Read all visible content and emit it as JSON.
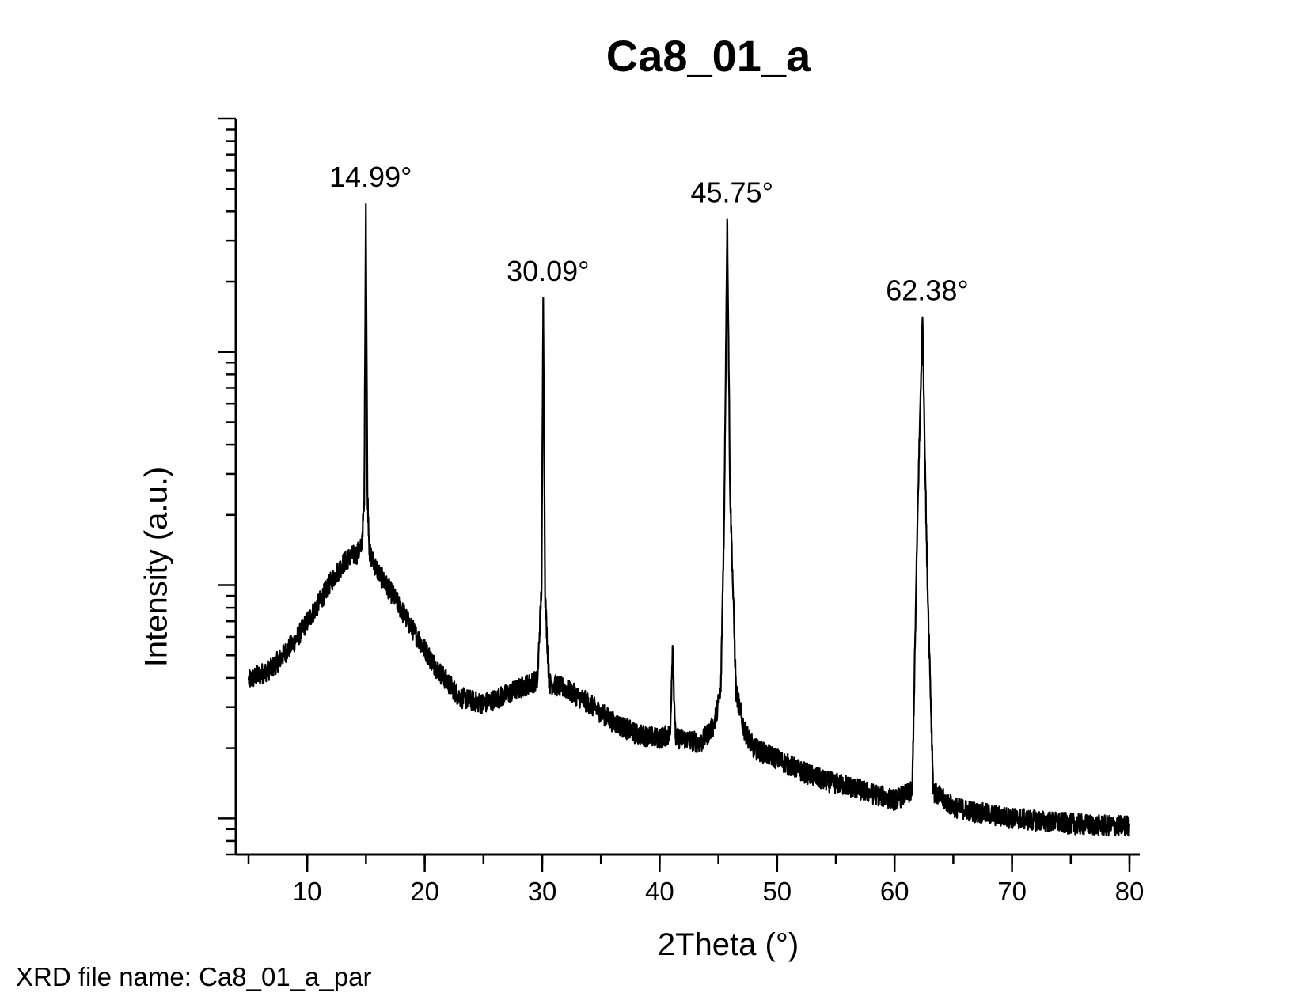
{
  "chart_data": {
    "type": "line",
    "title": "Ca8_01_a",
    "xlabel": "2Theta (°)",
    "ylabel": "Intensity (a.u.)",
    "xlim": [
      5,
      80
    ],
    "yscale": "log",
    "ylim": [
      0.7,
      1000
    ],
    "xticks": [
      10,
      20,
      30,
      40,
      50,
      60,
      70,
      80
    ],
    "xtick_labels": [
      "10",
      "20",
      "30",
      "40",
      "50",
      "60",
      "70",
      "80"
    ],
    "xminor_step": 5,
    "yticks_major": [
      1,
      10,
      100,
      1000
    ],
    "ytick_labels_shown": false,
    "grid": false,
    "line_color": "#000000",
    "series": [
      {
        "x": [
          5,
          7,
          9,
          11,
          12,
          13,
          13.6,
          14.2,
          14.6,
          14.85,
          14.99,
          15.12,
          15.3,
          15.6,
          16.2,
          17.5,
          19,
          21,
          23,
          25,
          27,
          28.5,
          29.6,
          29.95,
          30.09,
          30.25,
          30.6,
          32,
          34,
          36,
          38,
          40,
          40.9,
          41.1,
          41.35,
          42,
          43.5,
          44.6,
          45.2,
          45.5,
          45.75,
          46.0,
          46.5,
          47.2,
          48,
          50,
          52,
          54,
          56,
          58,
          60,
          61.5,
          62.0,
          62.38,
          62.75,
          63.3,
          65,
          67,
          70,
          73,
          76,
          78,
          80
        ],
        "y": [
          3.9,
          4.4,
          5.8,
          8.4,
          10.3,
          12.3,
          13.2,
          13.6,
          14.5,
          22,
          430,
          25,
          13.8,
          12.6,
          11,
          8.7,
          6.4,
          4.4,
          3.3,
          3.1,
          3.4,
          3.7,
          3.9,
          10,
          170,
          9,
          3.8,
          3.6,
          3.1,
          2.6,
          2.3,
          2.2,
          2.3,
          5.5,
          2.2,
          2.2,
          2.1,
          2.5,
          3.5,
          20,
          370,
          25,
          3.5,
          2.4,
          2.0,
          1.8,
          1.6,
          1.45,
          1.38,
          1.28,
          1.2,
          1.3,
          25,
          140,
          13,
          1.3,
          1.12,
          1.06,
          1.0,
          0.97,
          0.94,
          0.93,
          0.93
        ]
      }
    ],
    "annotations": [
      "14.99°",
      "30.09°",
      "45.75°",
      "62.38°"
    ],
    "annotation_x": [
      14.99,
      30.09,
      45.75,
      62.38
    ],
    "annotation_y": [
      430,
      170,
      370,
      140
    ]
  },
  "footer": {
    "file_label": "XRD file name: Ca8_01_a_par"
  }
}
